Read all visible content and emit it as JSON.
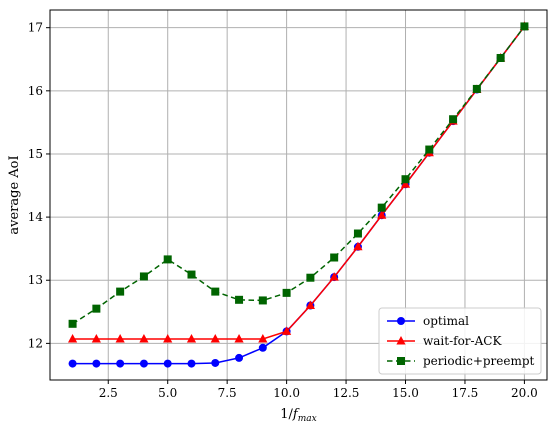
{
  "chart_data": {
    "type": "line",
    "title": "",
    "xlabel": "1/f_max",
    "ylabel": "average AoI",
    "xlim": [
      0.05,
      20.95
    ],
    "ylim": [
      11.42,
      17.28
    ],
    "xticks": [
      2.5,
      5.0,
      7.5,
      10.0,
      12.5,
      15.0,
      17.5,
      20.0
    ],
    "xtick_labels": [
      "2.5",
      "5.0",
      "7.5",
      "10.0",
      "12.5",
      "15.0",
      "17.5",
      "20.0"
    ],
    "yticks": [
      12,
      13,
      14,
      15,
      16,
      17
    ],
    "ytick_labels": [
      "12",
      "13",
      "14",
      "15",
      "16",
      "17"
    ],
    "grid": true,
    "legend_position": "bottom-right",
    "x": [
      1,
      2,
      3,
      4,
      5,
      6,
      7,
      8,
      9,
      10,
      11,
      12,
      13,
      14,
      15,
      16,
      17,
      18,
      19,
      20
    ],
    "series": [
      {
        "name": "optimal",
        "color": "#0000ff",
        "marker": "circle",
        "line": "solid",
        "values": [
          11.68,
          11.68,
          11.68,
          11.68,
          11.68,
          11.68,
          11.69,
          11.77,
          11.93,
          12.19,
          12.6,
          13.05,
          13.53,
          14.03,
          14.52,
          15.02,
          15.52,
          16.02,
          16.52,
          17.02
        ]
      },
      {
        "name": "wait-for-ACK",
        "color": "#ff0000",
        "marker": "triangle",
        "line": "solid",
        "values": [
          12.07,
          12.07,
          12.07,
          12.07,
          12.07,
          12.07,
          12.07,
          12.07,
          12.07,
          12.19,
          12.6,
          13.05,
          13.53,
          14.03,
          14.52,
          15.02,
          15.52,
          16.02,
          16.52,
          17.02
        ]
      },
      {
        "name": "periodic+preempt",
        "color": "#006400",
        "marker": "square",
        "line": "dashed",
        "values": [
          12.31,
          12.55,
          12.82,
          13.06,
          13.33,
          13.09,
          12.82,
          12.69,
          12.68,
          12.8,
          13.04,
          13.36,
          13.74,
          14.15,
          14.6,
          15.07,
          15.55,
          16.03,
          16.52,
          17.02
        ]
      }
    ]
  }
}
